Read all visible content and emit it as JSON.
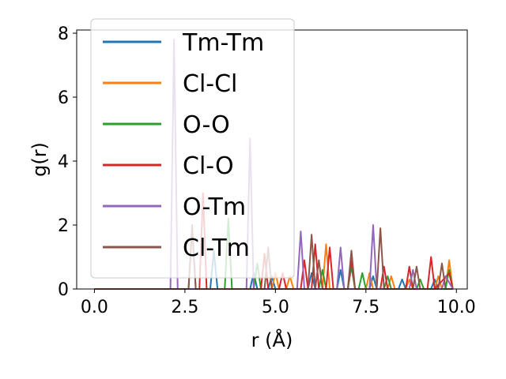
{
  "chart_data": {
    "type": "line",
    "xlabel": "r (Å)",
    "ylabel": "g(r)",
    "xlim": [
      -0.49,
      10.3
    ],
    "ylim": [
      0,
      8.1
    ],
    "xticks": [
      0.0,
      2.5,
      5.0,
      7.5,
      10.0
    ],
    "xtick_labels": [
      "0.0",
      "2.5",
      "5.0",
      "7.5",
      "10.0"
    ],
    "yticks": [
      0,
      2,
      4,
      6,
      8
    ],
    "ytick_labels": [
      "0",
      "2",
      "4",
      "6",
      "8"
    ],
    "grid": false,
    "legend_position": "top-left",
    "series": [
      {
        "name": "Tm-Tm",
        "color": "#1f77b4",
        "x": [
          0.0,
          3.2,
          3.3,
          3.4,
          3.6,
          4.3,
          4.4,
          4.5,
          4.8,
          4.9,
          5.0,
          5.9,
          6.0,
          6.1,
          6.7,
          6.8,
          6.9,
          7.6,
          7.7,
          7.8,
          8.4,
          8.5,
          8.6,
          9.3,
          9.4,
          9.5,
          9.9
        ],
        "y": [
          0.0,
          0.0,
          1.2,
          0.0,
          0.0,
          0.0,
          0.5,
          0.0,
          0.0,
          0.4,
          0.0,
          0.0,
          0.5,
          0.0,
          0.0,
          0.6,
          0.0,
          0.0,
          0.4,
          0.0,
          0.0,
          0.3,
          0.0,
          0.0,
          0.3,
          0.0,
          0.0
        ]
      },
      {
        "name": "Cl-Cl",
        "color": "#ff7f0e",
        "x": [
          0.0,
          4.9,
          5.0,
          5.1,
          5.3,
          5.4,
          5.5,
          6.3,
          6.4,
          6.5,
          7.5,
          7.6,
          7.7,
          8.1,
          8.2,
          8.3,
          8.6,
          8.7,
          8.8,
          9.4,
          9.5,
          9.6,
          9.7,
          9.8,
          9.9
        ],
        "y": [
          0.0,
          0.0,
          0.5,
          0.0,
          0.0,
          0.4,
          0.0,
          0.0,
          1.4,
          0.0,
          0.0,
          0.5,
          0.0,
          0.0,
          0.4,
          0.0,
          0.0,
          0.3,
          0.0,
          0.0,
          0.4,
          0.0,
          0.0,
          0.9,
          0.0
        ]
      },
      {
        "name": "O-O",
        "color": "#2ca02c",
        "x": [
          0.0,
          2.6,
          2.7,
          2.8,
          3.6,
          3.7,
          3.8,
          4.4,
          4.5,
          4.6,
          6.2,
          6.3,
          6.4,
          7.0,
          7.1,
          7.2,
          7.3,
          7.4,
          7.5,
          8.0,
          8.1,
          8.2,
          8.9,
          9.0,
          9.1,
          9.7,
          9.8,
          9.9
        ],
        "y": [
          0.0,
          0.0,
          1.9,
          0.0,
          0.0,
          2.2,
          0.0,
          0.0,
          0.8,
          0.0,
          0.0,
          0.6,
          0.0,
          0.0,
          0.7,
          0.0,
          0.0,
          0.5,
          0.0,
          0.0,
          0.4,
          0.0,
          0.0,
          0.3,
          0.0,
          0.0,
          0.6,
          0.0
        ]
      },
      {
        "name": "Cl-O",
        "color": "#d62728",
        "x": [
          0.0,
          2.9,
          3.0,
          3.1,
          4.6,
          4.7,
          4.8,
          5.1,
          5.2,
          5.3,
          5.7,
          5.8,
          5.9,
          6.0,
          6.1,
          6.2,
          6.4,
          6.5,
          6.6,
          7.0,
          7.1,
          7.2,
          7.9,
          8.0,
          8.1,
          8.6,
          8.7,
          8.8,
          9.2,
          9.3,
          9.4,
          9.8,
          9.9
        ],
        "y": [
          0.0,
          0.0,
          3.0,
          0.0,
          0.0,
          1.1,
          0.0,
          0.0,
          0.5,
          0.0,
          0.0,
          0.9,
          0.0,
          0.0,
          1.4,
          0.0,
          0.0,
          1.3,
          0.0,
          0.0,
          0.9,
          0.0,
          0.0,
          0.7,
          0.0,
          0.0,
          0.7,
          0.0,
          0.0,
          1.0,
          0.0,
          0.5,
          0.0
        ]
      },
      {
        "name": "O-Tm",
        "color": "#9467bd",
        "x": [
          0.0,
          2.1,
          2.2,
          2.3,
          4.2,
          4.3,
          4.4,
          5.6,
          5.7,
          5.8,
          6.7,
          6.8,
          6.9,
          7.6,
          7.7,
          7.8,
          8.7,
          8.8,
          8.9,
          9.6,
          9.7,
          9.9
        ],
        "y": [
          0.0,
          0.0,
          7.8,
          0.0,
          0.0,
          4.7,
          0.0,
          0.0,
          1.8,
          0.0,
          0.0,
          1.3,
          0.0,
          0.0,
          2.0,
          0.0,
          0.0,
          0.6,
          0.0,
          0.0,
          0.4,
          0.0
        ]
      },
      {
        "name": "Cl-Tm",
        "color": "#8c564b",
        "x": [
          0.0,
          2.6,
          2.7,
          2.8,
          4.7,
          4.8,
          4.9,
          5.9,
          6.0,
          6.1,
          6.2,
          6.3,
          7.0,
          7.1,
          7.2,
          7.8,
          7.9,
          8.0,
          8.8,
          8.9,
          9.0,
          9.5,
          9.6,
          9.7,
          9.9
        ],
        "y": [
          0.0,
          0.0,
          2.0,
          0.0,
          0.0,
          1.3,
          0.0,
          0.0,
          1.7,
          0.0,
          0.9,
          0.0,
          0.0,
          1.2,
          0.0,
          0.0,
          1.9,
          0.0,
          0.0,
          0.7,
          0.0,
          0.0,
          0.8,
          0.0,
          0.0
        ]
      }
    ]
  }
}
